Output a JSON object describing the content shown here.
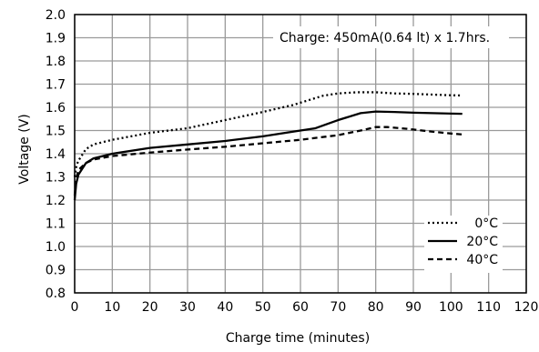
{
  "chart_data": {
    "type": "line",
    "xlabel": "Charge time (minutes)",
    "ylabel": "Voltage (V)",
    "xlim": [
      0,
      120
    ],
    "ylim": [
      0.8,
      2.0
    ],
    "x_ticks": [
      0,
      10,
      20,
      30,
      40,
      50,
      60,
      70,
      80,
      90,
      100,
      110,
      120
    ],
    "y_ticks": [
      "0.8",
      "0.9",
      "1.0",
      "1.1",
      "1.2",
      "1.3",
      "1.4",
      "1.5",
      "1.6",
      "1.7",
      "1.8",
      "1.9",
      "2.0"
    ],
    "grid": true,
    "legend_position": "bottom-right",
    "annotation": "Charge: 450mA(0.64 lt)  x 1.7hrs.",
    "series": [
      {
        "name": "0°C",
        "style": "dotted",
        "color": "#000000",
        "points": [
          [
            0,
            1.3
          ],
          [
            0.5,
            1.35
          ],
          [
            1,
            1.37
          ],
          [
            3,
            1.42
          ],
          [
            5,
            1.44
          ],
          [
            10,
            1.46
          ],
          [
            20,
            1.49
          ],
          [
            30,
            1.51
          ],
          [
            40,
            1.545
          ],
          [
            50,
            1.58
          ],
          [
            58,
            1.61
          ],
          [
            62,
            1.63
          ],
          [
            66,
            1.65
          ],
          [
            70,
            1.66
          ],
          [
            75,
            1.665
          ],
          [
            80,
            1.665
          ],
          [
            85,
            1.66
          ],
          [
            90,
            1.658
          ],
          [
            95,
            1.655
          ],
          [
            100,
            1.652
          ],
          [
            103,
            1.651
          ]
        ]
      },
      {
        "name": "20°C",
        "style": "solid",
        "color": "#000000",
        "points": [
          [
            0,
            1.2
          ],
          [
            0.4,
            1.27
          ],
          [
            1,
            1.31
          ],
          [
            3,
            1.36
          ],
          [
            5,
            1.38
          ],
          [
            10,
            1.4
          ],
          [
            20,
            1.425
          ],
          [
            30,
            1.44
          ],
          [
            40,
            1.455
          ],
          [
            50,
            1.475
          ],
          [
            60,
            1.5
          ],
          [
            64,
            1.51
          ],
          [
            70,
            1.545
          ],
          [
            76,
            1.575
          ],
          [
            80,
            1.582
          ],
          [
            85,
            1.58
          ],
          [
            90,
            1.577
          ],
          [
            95,
            1.575
          ],
          [
            100,
            1.573
          ],
          [
            103,
            1.572
          ]
        ]
      },
      {
        "name": "40°C",
        "style": "dashed",
        "color": "#000000",
        "points": [
          [
            0,
            1.22
          ],
          [
            0.4,
            1.29
          ],
          [
            1,
            1.33
          ],
          [
            3,
            1.36
          ],
          [
            5,
            1.375
          ],
          [
            10,
            1.39
          ],
          [
            20,
            1.405
          ],
          [
            30,
            1.418
          ],
          [
            40,
            1.43
          ],
          [
            50,
            1.445
          ],
          [
            60,
            1.46
          ],
          [
            70,
            1.48
          ],
          [
            76,
            1.5
          ],
          [
            80,
            1.515
          ],
          [
            83,
            1.515
          ],
          [
            88,
            1.508
          ],
          [
            95,
            1.495
          ],
          [
            100,
            1.487
          ],
          [
            103,
            1.483
          ]
        ]
      }
    ]
  }
}
